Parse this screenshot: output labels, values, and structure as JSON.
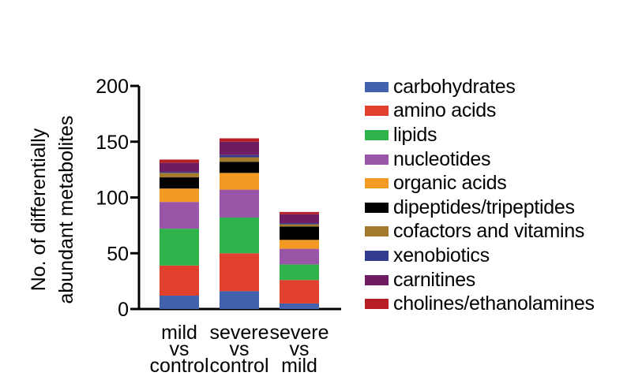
{
  "chart_data": {
    "type": "bar",
    "stacked": true,
    "ylabel": "No. of differentially\nabundant metabolites",
    "xlabel": "",
    "ylim": [
      0,
      200
    ],
    "yticks": [
      0,
      50,
      100,
      150,
      200
    ],
    "categories": [
      "mild\nvs\ncontrol",
      "severe\nvs\ncontrol",
      "severe\nvs\nmild"
    ],
    "legend_position": "right",
    "series": [
      {
        "name": "carbohydrates",
        "color": "#4262ae",
        "values": [
          12,
          16,
          5
        ]
      },
      {
        "name": "amino acids",
        "color": "#e0402d",
        "values": [
          27,
          34,
          21
        ]
      },
      {
        "name": "lipids",
        "color": "#2db34a",
        "values": [
          33,
          32,
          14
        ]
      },
      {
        "name": "nucleotides",
        "color": "#9b55a8",
        "values": [
          24,
          25,
          14
        ]
      },
      {
        "name": "organic acids",
        "color": "#f29a24",
        "values": [
          12,
          15,
          8
        ]
      },
      {
        "name": "dipeptides/tripeptides",
        "color": "#000000",
        "values": [
          10,
          10,
          12
        ]
      },
      {
        "name": "cofactors and vitamins",
        "color": "#a37a2c",
        "values": [
          4,
          4,
          2
        ]
      },
      {
        "name": "xenobiotics",
        "color": "#323c8f",
        "values": [
          1,
          2,
          1
        ]
      },
      {
        "name": "carnitines",
        "color": "#6e1d63",
        "values": [
          8,
          12,
          8
        ]
      },
      {
        "name": "cholines/ethanolamines",
        "color": "#b71f25",
        "values": [
          3,
          3,
          2
        ]
      }
    ]
  }
}
